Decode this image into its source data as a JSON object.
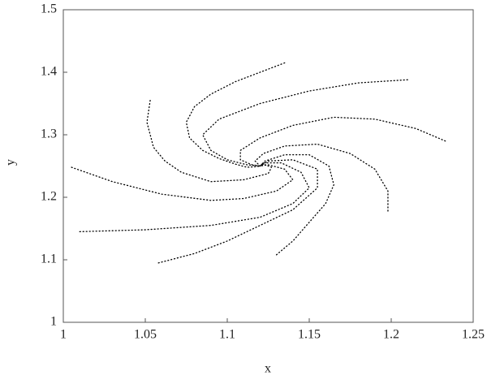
{
  "chart_data": {
    "type": "line",
    "x_label": "x",
    "y_label": "y",
    "xlim": [
      1,
      1.25
    ],
    "xticks": [
      1,
      1.05,
      1.1,
      1.15,
      1.2,
      1.25
    ],
    "ylim": [
      1,
      1.5
    ],
    "yticks": [
      1,
      1.1,
      1.2,
      1.3,
      1.4,
      1.5
    ],
    "grid": false,
    "series": [
      {
        "color": "#000000",
        "x": [
          1.135,
          1.12,
          1.105,
          1.09,
          1.08,
          1.075,
          1.077,
          1.085,
          1.095,
          1.105,
          1.112,
          1.118,
          1.12
        ],
        "values": [
          1.415,
          1.4,
          1.385,
          1.365,
          1.345,
          1.32,
          1.295,
          1.275,
          1.262,
          1.253,
          1.248,
          1.249,
          1.25
        ]
      },
      {
        "color": "#000000",
        "x": [
          1.053,
          1.051,
          1.055,
          1.062,
          1.072,
          1.09,
          1.11,
          1.125,
          1.127,
          1.122,
          1.12
        ],
        "values": [
          1.355,
          1.32,
          1.28,
          1.258,
          1.24,
          1.225,
          1.228,
          1.238,
          1.248,
          1.253,
          1.25
        ]
      },
      {
        "color": "#000000",
        "x": [
          1.005,
          1.03,
          1.06,
          1.09,
          1.11,
          1.13,
          1.14,
          1.135,
          1.125,
          1.12
        ],
        "values": [
          1.248,
          1.225,
          1.205,
          1.195,
          1.198,
          1.21,
          1.228,
          1.245,
          1.252,
          1.25
        ]
      },
      {
        "color": "#000000",
        "x": [
          1.01,
          1.05,
          1.09,
          1.12,
          1.14,
          1.15,
          1.145,
          1.133,
          1.122,
          1.12
        ],
        "values": [
          1.145,
          1.148,
          1.155,
          1.168,
          1.19,
          1.215,
          1.24,
          1.255,
          1.255,
          1.25
        ]
      },
      {
        "color": "#000000",
        "x": [
          1.058,
          1.08,
          1.1,
          1.12,
          1.14,
          1.155,
          1.155,
          1.14,
          1.125,
          1.12
        ],
        "values": [
          1.095,
          1.11,
          1.13,
          1.155,
          1.18,
          1.215,
          1.245,
          1.26,
          1.258,
          1.25
        ]
      },
      {
        "color": "#000000",
        "x": [
          1.13,
          1.14,
          1.15,
          1.16,
          1.165,
          1.162,
          1.15,
          1.135,
          1.123,
          1.12
        ],
        "values": [
          1.108,
          1.13,
          1.16,
          1.19,
          1.22,
          1.25,
          1.268,
          1.268,
          1.258,
          1.25
        ]
      },
      {
        "color": "#000000",
        "x": [
          1.198,
          1.198,
          1.19,
          1.175,
          1.155,
          1.135,
          1.122,
          1.117,
          1.12
        ],
        "values": [
          1.178,
          1.21,
          1.245,
          1.27,
          1.285,
          1.282,
          1.27,
          1.258,
          1.25
        ]
      },
      {
        "color": "#000000",
        "x": [
          1.233,
          1.215,
          1.19,
          1.165,
          1.14,
          1.12,
          1.108,
          1.108,
          1.115,
          1.12
        ],
        "values": [
          1.29,
          1.31,
          1.325,
          1.328,
          1.315,
          1.295,
          1.275,
          1.26,
          1.252,
          1.25
        ]
      },
      {
        "color": "#000000",
        "x": [
          1.21,
          1.18,
          1.15,
          1.12,
          1.095,
          1.085,
          1.09,
          1.1,
          1.112,
          1.12
        ],
        "values": [
          1.388,
          1.383,
          1.37,
          1.35,
          1.325,
          1.3,
          1.275,
          1.26,
          1.252,
          1.25
        ]
      }
    ]
  }
}
